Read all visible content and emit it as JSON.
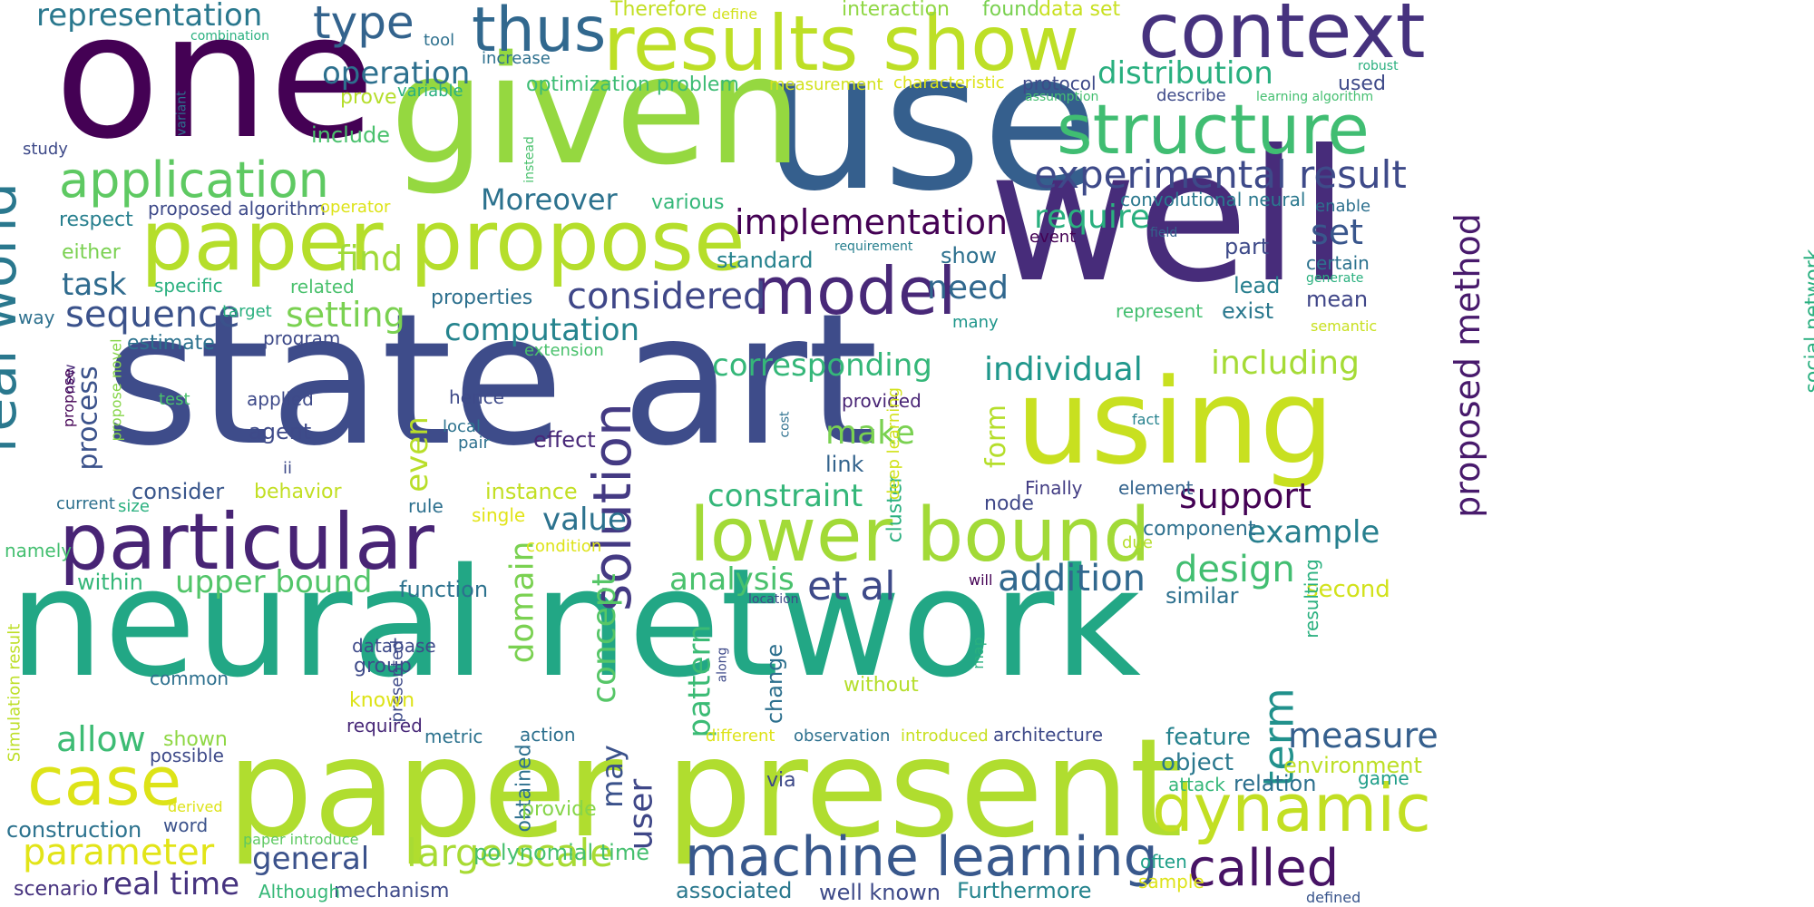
{
  "words": [
    {
      "text": "neural network",
      "color": "#22a785"
    },
    {
      "text": "state art",
      "color": "#3e4c8a"
    },
    {
      "text": "use",
      "color": "#355f8d"
    },
    {
      "text": "well",
      "color": "#472c7a"
    },
    {
      "text": "one",
      "color": "#440154"
    },
    {
      "text": "given",
      "color": "#95d840"
    },
    {
      "text": "paper present",
      "color": "#b0dd2f"
    },
    {
      "text": "using",
      "color": "#c8e020"
    },
    {
      "text": "paper propose",
      "color": "#b5de2b"
    },
    {
      "text": "results show",
      "color": "#bddf26"
    },
    {
      "text": "context",
      "color": "#46327e"
    },
    {
      "text": "particular",
      "color": "#482475"
    },
    {
      "text": "lower bound",
      "color": "#a2da37"
    },
    {
      "text": "structure",
      "color": "#40bd72"
    },
    {
      "text": "real world",
      "color": "#2a788e"
    },
    {
      "text": "solution",
      "color": "#443a83"
    },
    {
      "text": "model",
      "color": "#482878"
    },
    {
      "text": "machine learning",
      "color": "#38588c"
    },
    {
      "text": "dynamic",
      "color": "#c2df23"
    },
    {
      "text": "case",
      "color": "#dde318"
    },
    {
      "text": "called",
      "color": "#471365"
    },
    {
      "text": "thus",
      "color": "#31688e"
    },
    {
      "text": "application",
      "color": "#5ec962"
    },
    {
      "text": "experimental result",
      "color": "#3e4a89"
    },
    {
      "text": "proposed method",
      "color": "#481a6c"
    },
    {
      "text": "term",
      "color": "#21918c"
    },
    {
      "text": "type",
      "color": "#33638d"
    },
    {
      "text": "representation",
      "color": "#2a788e"
    },
    {
      "text": "implementation",
      "color": "#440154"
    },
    {
      "text": "considered",
      "color": "#3f4788"
    },
    {
      "text": "sequence",
      "color": "#3b528b"
    },
    {
      "text": "setting",
      "color": "#7ad151"
    },
    {
      "text": "computation",
      "color": "#25848e"
    },
    {
      "text": "corresponding",
      "color": "#35b779"
    },
    {
      "text": "individual",
      "color": "#1f978b"
    },
    {
      "text": "including",
      "color": "#a5db36"
    },
    {
      "text": "set",
      "color": "#39568c"
    },
    {
      "text": "require",
      "color": "#2ab07f"
    },
    {
      "text": "distribution",
      "color": "#29af7f"
    },
    {
      "text": "operation",
      "color": "#2d708e"
    },
    {
      "text": "Moreover",
      "color": "#2c728e"
    },
    {
      "text": "optimization problem",
      "color": "#3dbc74"
    },
    {
      "text": "find",
      "color": "#a0da39"
    },
    {
      "text": "task",
      "color": "#2f6b8e"
    },
    {
      "text": "process",
      "color": "#3b528b"
    },
    {
      "text": "value",
      "color": "#2c728e"
    },
    {
      "text": "constraint",
      "color": "#34b679"
    },
    {
      "text": "upper bound",
      "color": "#52c569"
    },
    {
      "text": "analysis",
      "color": "#4ac16d"
    },
    {
      "text": "et al",
      "color": "#3e4a89"
    },
    {
      "text": "addition",
      "color": "#31688e"
    },
    {
      "text": "design",
      "color": "#42be71"
    },
    {
      "text": "support",
      "color": "#440154"
    },
    {
      "text": "example",
      "color": "#277f8e"
    },
    {
      "text": "measure",
      "color": "#355f8d"
    },
    {
      "text": "allow",
      "color": "#3dbc74"
    },
    {
      "text": "parameter",
      "color": "#e2e418"
    },
    {
      "text": "general",
      "color": "#3b528b"
    },
    {
      "text": "large scale",
      "color": "#a8db34"
    },
    {
      "text": "real time",
      "color": "#46337f"
    },
    {
      "text": "make",
      "color": "#7ad151"
    },
    {
      "text": "even",
      "color": "#b8de29"
    },
    {
      "text": "need",
      "color": "#31688e"
    },
    {
      "text": "domain",
      "color": "#7ad151"
    },
    {
      "text": "concept",
      "color": "#56c667"
    },
    {
      "text": "may",
      "color": "#3b528b"
    },
    {
      "text": "user",
      "color": "#3f4788"
    },
    {
      "text": "pattern",
      "color": "#3bbb75"
    },
    {
      "text": "form",
      "color": "#b5de2b"
    },
    {
      "text": "construction",
      "color": "#2c728e"
    },
    {
      "text": "word",
      "color": "#3b528b"
    },
    {
      "text": "scenario",
      "color": "#46327e"
    },
    {
      "text": "mechanism",
      "color": "#3e4a89"
    },
    {
      "text": "associated",
      "color": "#2a788e"
    },
    {
      "text": "well known",
      "color": "#3e4a89"
    },
    {
      "text": "Furthermore",
      "color": "#25848e"
    },
    {
      "text": "polynomial time",
      "color": "#46c06f"
    },
    {
      "text": "Although",
      "color": "#37b878"
    },
    {
      "text": "feature",
      "color": "#26828e"
    },
    {
      "text": "object",
      "color": "#2a788e"
    },
    {
      "text": "environment",
      "color": "#bddf26"
    },
    {
      "text": "relation",
      "color": "#2d708e"
    },
    {
      "text": "attack",
      "color": "#35b779"
    },
    {
      "text": "game",
      "color": "#1f9e89"
    },
    {
      "text": "often",
      "color": "#1fa088"
    },
    {
      "text": "sample",
      "color": "#dde318"
    },
    {
      "text": "defined",
      "color": "#39558c"
    },
    {
      "text": "similar",
      "color": "#2d708e"
    },
    {
      "text": "second",
      "color": "#d2e21b"
    },
    {
      "text": "component",
      "color": "#2d708e"
    },
    {
      "text": "node",
      "color": "#3f4788"
    },
    {
      "text": "Finally",
      "color": "#433d84"
    },
    {
      "text": "element",
      "color": "#33638d"
    },
    {
      "text": "cluster",
      "color": "#2ab07f"
    },
    {
      "text": "link",
      "color": "#33638d"
    },
    {
      "text": "provided",
      "color": "#482475"
    },
    {
      "text": "show",
      "color": "#2d708e"
    },
    {
      "text": "part",
      "color": "#3e4a89"
    },
    {
      "text": "lead",
      "color": "#277f8e"
    },
    {
      "text": "exist",
      "color": "#2a788e"
    },
    {
      "text": "mean",
      "color": "#404688"
    },
    {
      "text": "certain",
      "color": "#2c728e"
    },
    {
      "text": "generate",
      "color": "#2ab07f"
    },
    {
      "text": "enable",
      "color": "#2d708e"
    },
    {
      "text": "field",
      "color": "#33638d"
    },
    {
      "text": "event",
      "color": "#440154"
    },
    {
      "text": "requirement",
      "color": "#277f8e"
    },
    {
      "text": "convolutional neural",
      "color": "#2a788e"
    },
    {
      "text": "social network",
      "color": "#29af7f"
    },
    {
      "text": "semantic",
      "color": "#c8e020"
    },
    {
      "text": "represent",
      "color": "#44bf70"
    },
    {
      "text": "fact",
      "color": "#26828e"
    },
    {
      "text": "many",
      "color": "#1f968b"
    },
    {
      "text": "standard",
      "color": "#26828e"
    },
    {
      "text": "instance",
      "color": "#c2df23"
    },
    {
      "text": "behavior",
      "color": "#c2df23"
    },
    {
      "text": "consider",
      "color": "#39568c"
    },
    {
      "text": "rule",
      "color": "#2d708e"
    },
    {
      "text": "single",
      "color": "#e2e418"
    },
    {
      "text": "condition",
      "color": "#dde318"
    },
    {
      "text": "due",
      "color": "#b5de2b"
    },
    {
      "text": "will",
      "color": "#440154"
    },
    {
      "text": "location",
      "color": "#3e4a89"
    },
    {
      "text": "effect",
      "color": "#482878"
    },
    {
      "text": "hence",
      "color": "#3e4a89"
    },
    {
      "text": "local",
      "color": "#2c728e"
    },
    {
      "text": "pair",
      "color": "#2d708e"
    },
    {
      "text": "applied",
      "color": "#3e4a89"
    },
    {
      "text": "agent",
      "color": "#3e4a89"
    },
    {
      "text": "ii",
      "color": "#3e4a89"
    },
    {
      "text": "properties",
      "color": "#2d708e"
    },
    {
      "text": "extension",
      "color": "#4ac16d"
    },
    {
      "text": "program",
      "color": "#3e4a89"
    },
    {
      "text": "estimate",
      "color": "#2c728e"
    },
    {
      "text": "target",
      "color": "#2ab07f"
    },
    {
      "text": "specific",
      "color": "#2ab07f"
    },
    {
      "text": "related",
      "color": "#4ac16d"
    },
    {
      "text": "respect",
      "color": "#277f8e"
    },
    {
      "text": "either",
      "color": "#7ad151"
    },
    {
      "text": "way",
      "color": "#2d708e"
    },
    {
      "text": "new",
      "color": "#482878"
    },
    {
      "text": "propose novel",
      "color": "#86d549"
    },
    {
      "text": "propose",
      "color": "#440154"
    },
    {
      "text": "test",
      "color": "#4ac16d"
    },
    {
      "text": "current",
      "color": "#2d708e"
    },
    {
      "text": "size",
      "color": "#2ab07f"
    },
    {
      "text": "namely",
      "color": "#44bf70"
    },
    {
      "text": "within",
      "color": "#35b779"
    },
    {
      "text": "function",
      "color": "#2c728e"
    },
    {
      "text": "Simulation result",
      "color": "#bddf26"
    },
    {
      "text": "common",
      "color": "#2d708e"
    },
    {
      "text": "database",
      "color": "#3e4a89"
    },
    {
      "text": "group",
      "color": "#3e4a89"
    },
    {
      "text": "presented",
      "color": "#3e4a89"
    },
    {
      "text": "known",
      "color": "#dde318"
    },
    {
      "text": "required",
      "color": "#482878"
    },
    {
      "text": "metric",
      "color": "#2c728e"
    },
    {
      "text": "obtained",
      "color": "#2d708e"
    },
    {
      "text": "action",
      "color": "#2d708e"
    },
    {
      "text": "provide",
      "color": "#86d549"
    },
    {
      "text": "shown",
      "color": "#8fd744"
    },
    {
      "text": "possible",
      "color": "#3e4a89"
    },
    {
      "text": "derived",
      "color": "#dde318"
    },
    {
      "text": "paper introduce",
      "color": "#5ec962"
    },
    {
      "text": "via",
      "color": "#3e4a89"
    },
    {
      "text": "along",
      "color": "#3e4a89"
    },
    {
      "text": "change",
      "color": "#2d708e"
    },
    {
      "text": "without",
      "color": "#b5de2b"
    },
    {
      "text": "different",
      "color": "#dde318"
    },
    {
      "text": "observation",
      "color": "#2d708e"
    },
    {
      "text": "introduced",
      "color": "#c8e020"
    },
    {
      "text": "architecture",
      "color": "#3e4a89"
    },
    {
      "text": "map",
      "color": "#2ab07f"
    },
    {
      "text": "resulting",
      "color": "#2ab07f"
    },
    {
      "text": "deep learning",
      "color": "#d2e21b"
    },
    {
      "text": "cost",
      "color": "#2d708e"
    },
    {
      "text": "tool",
      "color": "#2d708e"
    },
    {
      "text": "increase",
      "color": "#2d708e"
    },
    {
      "text": "variable",
      "color": "#2ab07f"
    },
    {
      "text": "prove",
      "color": "#b5de2b"
    },
    {
      "text": "include",
      "color": "#4ac16d"
    },
    {
      "text": "instead",
      "color": "#4ac16d"
    },
    {
      "text": "variant",
      "color": "#2d708e"
    },
    {
      "text": "study",
      "color": "#3e4a89"
    },
    {
      "text": "combination",
      "color": "#2ab07f"
    },
    {
      "text": "proposed algorithm",
      "color": "#3e4a89"
    },
    {
      "text": "operator",
      "color": "#dde318"
    },
    {
      "text": "various",
      "color": "#35b779"
    },
    {
      "text": "Therefore",
      "color": "#c2df23"
    },
    {
      "text": "define",
      "color": "#d2e21b"
    },
    {
      "text": "interaction",
      "color": "#8fd744"
    },
    {
      "text": "found",
      "color": "#7ad151"
    },
    {
      "text": "data set",
      "color": "#c8e020"
    },
    {
      "text": "measurement",
      "color": "#d2e21b"
    },
    {
      "text": "characteristic",
      "color": "#dde318"
    },
    {
      "text": "protocol",
      "color": "#3e4a89"
    },
    {
      "text": "assumption",
      "color": "#44bf70"
    },
    {
      "text": "describe",
      "color": "#3e4a89"
    },
    {
      "text": "learning algorithm",
      "color": "#44bf70"
    },
    {
      "text": "robust",
      "color": "#2ab07f"
    },
    {
      "text": "used",
      "color": "#3e4a89"
    }
  ]
}
